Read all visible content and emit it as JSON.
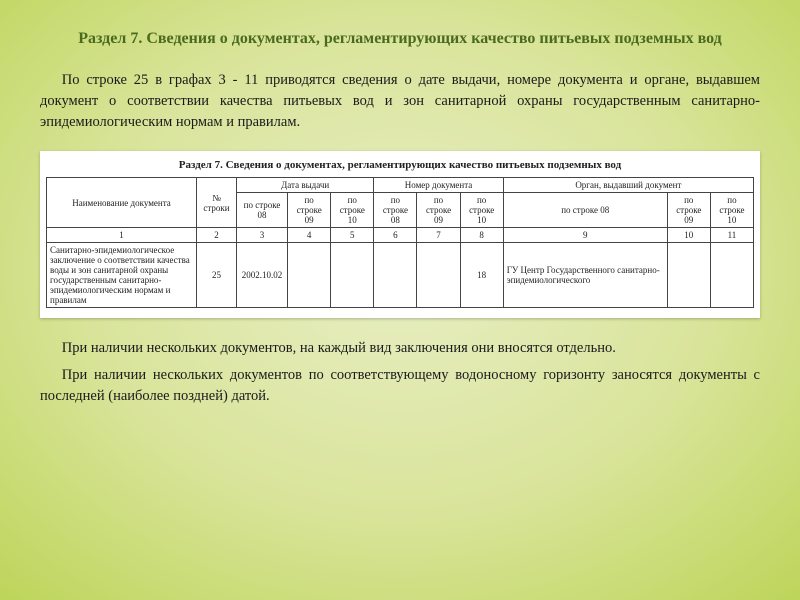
{
  "heading": "Раздел 7. Сведения о документах, регламентирующих качество питьевых подземных вод",
  "para1": "По строке 25 в графах 3 - 11 приводятся сведения о дате выдачи, номере документа и органе, выдавшем документ о соответствии качества питьевых вод и зон санитарной охраны государственным санитарно-эпидемиологическим нормам и правилам.",
  "para2": "При наличии нескольких документов, на каждый вид заключения они вносятся отдельно.",
  "para3": "При наличии нескольких документов по соответствующему водоносному горизонту заносятся документы с последней (наиболее поздней) датой.",
  "table": {
    "title": "Раздел 7. Сведения о документах, регламентирующих качество питьевых подземных вод",
    "headers": {
      "name": "Наименование документа",
      "rownum": "№ строки",
      "date_group": "Дата выдачи",
      "num_group": "Номер документа",
      "auth_group": "Орган, выдавший документ",
      "sub": [
        "по строке 08",
        "по строке 09",
        "по строке 10",
        "по строке 08",
        "по строке 09",
        "по строке 10",
        "по строке 08",
        "по строке 09",
        "по строке 10"
      ]
    },
    "num_row": [
      "1",
      "2",
      "3",
      "4",
      "5",
      "6",
      "7",
      "8",
      "9",
      "10",
      "11"
    ],
    "data_row": {
      "name": "Санитарно-эпидемиологическое заключение о соответствии качества воды и зон санитарной охраны государственным санитарно-эпидемиологическим нормам и правилам",
      "rownum": "25",
      "c3": "2002.10.02",
      "c4": "",
      "c5": "",
      "c6": "",
      "c7": "",
      "c8": "18",
      "c9": "ГУ Центр Государственного санитарно-эпидемиологического",
      "c10": "",
      "c11": ""
    }
  }
}
